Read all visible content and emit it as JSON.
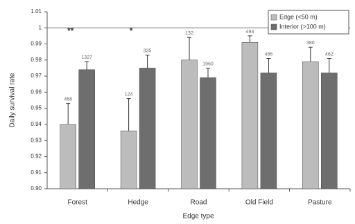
{
  "chart_data": {
    "type": "bar",
    "y_label": "Daily survival rate",
    "x_label": "Edge type",
    "categories": [
      "Forest",
      "Hedge",
      "Road",
      "Old Field",
      "Pasture"
    ],
    "annotations": [
      "**",
      "*",
      null,
      null,
      null
    ],
    "series": [
      {
        "name": "Edge (<50 m)",
        "color": "#bcbcbc",
        "values": [
          0.94,
          0.936,
          0.98,
          0.991,
          0.979
        ],
        "errors": [
          0.013,
          0.02,
          0.014,
          0.004,
          0.009
        ],
        "sample_sizes": [
          "468",
          "124",
          "132",
          "493",
          "380"
        ]
      },
      {
        "name": "Interior (>100 m)",
        "color": "#6e6e6e",
        "values": [
          0.974,
          0.975,
          0.969,
          0.972,
          0.972
        ],
        "errors": [
          0.005,
          0.008,
          0.006,
          0.009,
          0.009
        ],
        "sample_sizes": [
          "1327",
          "335",
          "1960",
          "486",
          "462"
        ]
      }
    ],
    "ylim": [
      0.9,
      1.01
    ],
    "yticks": [
      {
        "value": 0.9,
        "label": "0.90"
      },
      0.91,
      0.92,
      0.93,
      0.94,
      0.95,
      0.96,
      0.97,
      0.98,
      0.99,
      1,
      1.01
    ],
    "reference_line": 1,
    "legend": "top-right"
  }
}
